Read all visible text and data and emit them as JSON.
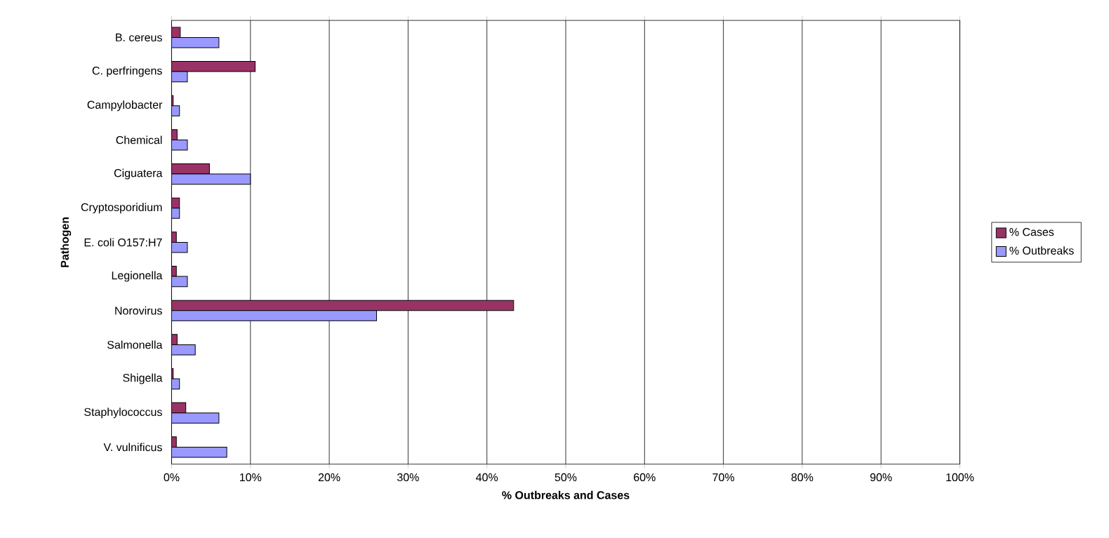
{
  "chart_data": {
    "type": "bar",
    "orientation": "horizontal",
    "xlabel": "% Outbreaks and Cases",
    "ylabel": "Pathogen",
    "categories": [
      "B. cereus",
      "C. perfringens",
      "Campylobacter",
      "Chemical",
      "Ciguatera",
      "Cryptosporidium",
      "E. coli O157:H7",
      "Legionella",
      "Norovirus",
      "Salmonella",
      "Shigella",
      "Staphylococcus",
      "V. vulnificus"
    ],
    "series": [
      {
        "name": "% Cases",
        "color": "#993366",
        "values": [
          1.1,
          10.6,
          0.2,
          0.7,
          4.8,
          1.0,
          0.6,
          0.6,
          43.4,
          0.7,
          0.2,
          1.8,
          0.6
        ]
      },
      {
        "name": "%  Outbreaks",
        "color": "#9999ff",
        "values": [
          6.0,
          2.0,
          1.0,
          2.0,
          10.0,
          1.0,
          2.0,
          2.0,
          26.0,
          3.0,
          1.0,
          6.0,
          7.0
        ]
      }
    ],
    "xlim": [
      0,
      100
    ],
    "xticks": [
      {
        "value": 0,
        "label": "0%"
      },
      {
        "value": 10,
        "label": "10%"
      },
      {
        "value": 20,
        "label": "20%"
      },
      {
        "value": 30,
        "label": "30%"
      },
      {
        "value": 40,
        "label": "40%"
      },
      {
        "value": 50,
        "label": "50%"
      },
      {
        "value": 60,
        "label": "60%"
      },
      {
        "value": 70,
        "label": "70%"
      },
      {
        "value": 80,
        "label": "80%"
      },
      {
        "value": 90,
        "label": "90%"
      },
      {
        "value": 100,
        "label": "100%"
      }
    ],
    "grid": "x",
    "legend": "right"
  }
}
